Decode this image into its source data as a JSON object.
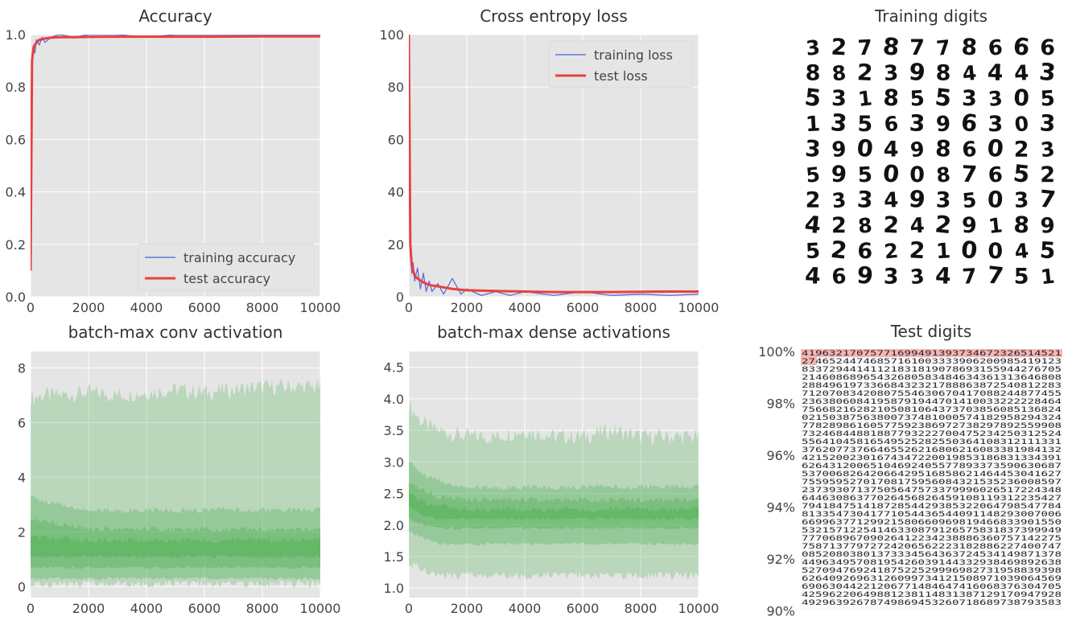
{
  "chart_data": [
    {
      "type": "line",
      "title": "Accuracy",
      "xlim": [
        0,
        10000
      ],
      "ylim": [
        0,
        1.0
      ],
      "xticks": [
        "0",
        "2000",
        "4000",
        "6000",
        "8000",
        "10000"
      ],
      "yticks": [
        "0.0",
        "0.2",
        "0.4",
        "0.6",
        "0.8",
        "1.0"
      ],
      "grid": true,
      "legend_position": "bottom-right",
      "series": [
        {
          "name": "training accuracy",
          "color": "#4c5fd5",
          "x": [
            0,
            50,
            100,
            150,
            200,
            300,
            400,
            500,
            700,
            1000,
            1500,
            2000,
            3000,
            4000,
            5000,
            6000,
            8000,
            10000
          ],
          "y": [
            0.1,
            0.85,
            0.96,
            0.93,
            0.98,
            0.96,
            0.99,
            0.97,
            0.99,
            1.0,
            0.99,
            1.0,
            1.0,
            0.99,
            1.0,
            1.0,
            1.0,
            1.0
          ]
        },
        {
          "name": "test accuracy",
          "color": "#e8413f",
          "x": [
            0,
            50,
            100,
            200,
            300,
            500,
            700,
            1000,
            1500,
            2000,
            3000,
            4000,
            6000,
            8000,
            10000
          ],
          "y": [
            0.1,
            0.9,
            0.95,
            0.97,
            0.98,
            0.985,
            0.988,
            0.99,
            0.99,
            0.991,
            0.992,
            0.992,
            0.992,
            0.993,
            0.993
          ]
        }
      ]
    },
    {
      "type": "line",
      "title": "Cross entropy loss",
      "xlim": [
        0,
        10000
      ],
      "ylim": [
        0,
        100
      ],
      "xticks": [
        "0",
        "2000",
        "4000",
        "6000",
        "8000",
        "10000"
      ],
      "yticks": [
        "0",
        "20",
        "40",
        "60",
        "80",
        "100"
      ],
      "grid": true,
      "legend_position": "top-right",
      "series": [
        {
          "name": "training loss",
          "color": "#4c5fd5",
          "x": [
            0,
            50,
            100,
            150,
            200,
            300,
            400,
            500,
            600,
            700,
            800,
            1000,
            1200,
            1500,
            1800,
            2000,
            2500,
            3000,
            3500,
            4000,
            5000,
            6000,
            7000,
            8000,
            9000,
            10000
          ],
          "y": [
            100,
            20,
            9,
            13,
            6,
            11,
            3,
            9,
            2,
            6,
            2,
            5,
            1,
            7,
            1,
            3,
            0.5,
            2,
            0.5,
            2,
            0.5,
            2,
            0.5,
            1,
            0.5,
            1
          ]
        },
        {
          "name": "test loss",
          "color": "#e8413f",
          "x": [
            0,
            50,
            100,
            200,
            300,
            500,
            700,
            1000,
            1500,
            2000,
            3000,
            4000,
            5000,
            6000,
            7000,
            8000,
            9000,
            10000
          ],
          "y": [
            100,
            20,
            12,
            8,
            7,
            5.5,
            4.5,
            4,
            3,
            2.5,
            2.2,
            2,
            1.8,
            1.8,
            1.8,
            1.9,
            2,
            2
          ]
        }
      ]
    },
    {
      "type": "area",
      "title": "batch-max conv activation",
      "xlim": [
        0,
        10000
      ],
      "ylim": [
        -0.4,
        8.6
      ],
      "xticks": [
        "0",
        "2000",
        "4000",
        "6000",
        "8000",
        "10000"
      ],
      "yticks": [
        "0",
        "2",
        "4",
        "6",
        "8"
      ],
      "grid": true,
      "x": [
        0,
        500,
        1000,
        2000,
        3000,
        4000,
        5000,
        6000,
        7000,
        8000,
        9000,
        10000
      ],
      "bands": [
        {
          "low": [
            0.1,
            0.1,
            0.1,
            0.1,
            0.1,
            0.1,
            0.1,
            0.1,
            0.1,
            0.1,
            0.1,
            0.1
          ],
          "high": [
            6.9,
            7.0,
            7.0,
            7.1,
            7.0,
            7.1,
            7.2,
            7.1,
            7.2,
            7.3,
            7.3,
            7.3
          ]
        },
        {
          "low": [
            0.3,
            0.3,
            0.3,
            0.3,
            0.3,
            0.3,
            0.3,
            0.3,
            0.3,
            0.3,
            0.3,
            0.3
          ],
          "high": [
            3.3,
            3.1,
            3.0,
            2.8,
            2.8,
            2.8,
            2.8,
            2.8,
            2.8,
            2.8,
            2.8,
            2.8
          ]
        },
        {
          "low": [
            0.7,
            0.7,
            0.7,
            0.7,
            0.7,
            0.7,
            0.7,
            0.7,
            0.7,
            0.7,
            0.7,
            0.7
          ],
          "high": [
            2.5,
            2.4,
            2.3,
            2.1,
            2.1,
            2.1,
            2.1,
            2.1,
            2.1,
            2.1,
            2.1,
            2.1
          ]
        },
        {
          "low": [
            1.1,
            1.1,
            1.1,
            1.1,
            1.1,
            1.1,
            1.1,
            1.1,
            1.1,
            1.1,
            1.1,
            1.1
          ],
          "high": [
            1.8,
            1.8,
            1.75,
            1.7,
            1.7,
            1.7,
            1.7,
            1.7,
            1.7,
            1.7,
            1.7,
            1.7
          ]
        }
      ]
    },
    {
      "type": "area",
      "title": "batch-max dense activations",
      "xlim": [
        0,
        10000
      ],
      "ylim": [
        0.85,
        4.75
      ],
      "xticks": [
        "0",
        "2000",
        "4000",
        "6000",
        "8000",
        "10000"
      ],
      "yticks": [
        "1.0",
        "1.5",
        "2.0",
        "2.5",
        "3.0",
        "3.5",
        "4.0",
        "4.5"
      ],
      "grid": true,
      "x": [
        0,
        500,
        1000,
        2000,
        3000,
        4000,
        5000,
        6000,
        7000,
        8000,
        9000,
        10000
      ],
      "bands": [
        {
          "low": [
            1.4,
            1.3,
            1.2,
            1.2,
            1.2,
            1.2,
            1.2,
            1.2,
            1.2,
            1.2,
            1.2,
            1.2
          ],
          "high": [
            3.9,
            3.6,
            3.5,
            3.4,
            3.4,
            3.5,
            3.4,
            3.4,
            3.5,
            3.4,
            3.4,
            3.4
          ]
        },
        {
          "low": [
            1.9,
            1.8,
            1.7,
            1.7,
            1.7,
            1.7,
            1.7,
            1.7,
            1.7,
            1.7,
            1.7,
            1.7
          ],
          "high": [
            3.0,
            2.8,
            2.7,
            2.6,
            2.6,
            2.6,
            2.6,
            2.6,
            2.6,
            2.6,
            2.6,
            2.6
          ]
        },
        {
          "low": [
            2.1,
            2.0,
            1.95,
            1.95,
            1.95,
            1.95,
            1.95,
            1.95,
            1.95,
            1.95,
            1.95,
            1.95
          ],
          "high": [
            2.7,
            2.55,
            2.45,
            2.4,
            2.4,
            2.4,
            2.4,
            2.4,
            2.4,
            2.4,
            2.4,
            2.4
          ]
        },
        {
          "low": [
            2.3,
            2.15,
            2.1,
            2.1,
            2.1,
            2.1,
            2.1,
            2.1,
            2.1,
            2.1,
            2.1,
            2.1
          ],
          "high": [
            2.5,
            2.35,
            2.3,
            2.25,
            2.25,
            2.25,
            2.25,
            2.25,
            2.25,
            2.25,
            2.25,
            2.25
          ]
        }
      ]
    }
  ],
  "training_digits": {
    "title": "Training digits",
    "rows": [
      "3278778666",
      "8823984443",
      "5318553305",
      "1356396303",
      "3904986023",
      "5950087652",
      "2334935037",
      "4282429189",
      "5262210045",
      "4693347751"
    ]
  },
  "test_digits": {
    "title": "Test digits",
    "ylabels": [
      "100%",
      "98%",
      "96%",
      "94%",
      "92%",
      "90%"
    ]
  },
  "colors": {
    "axes_bg": "#e5e5e5",
    "grid": "#ffffff",
    "training": "#4c5fd5",
    "test": "#e8413f",
    "activation_green": "#4caf50",
    "test_digit_error_row": "#f5b5b5"
  }
}
